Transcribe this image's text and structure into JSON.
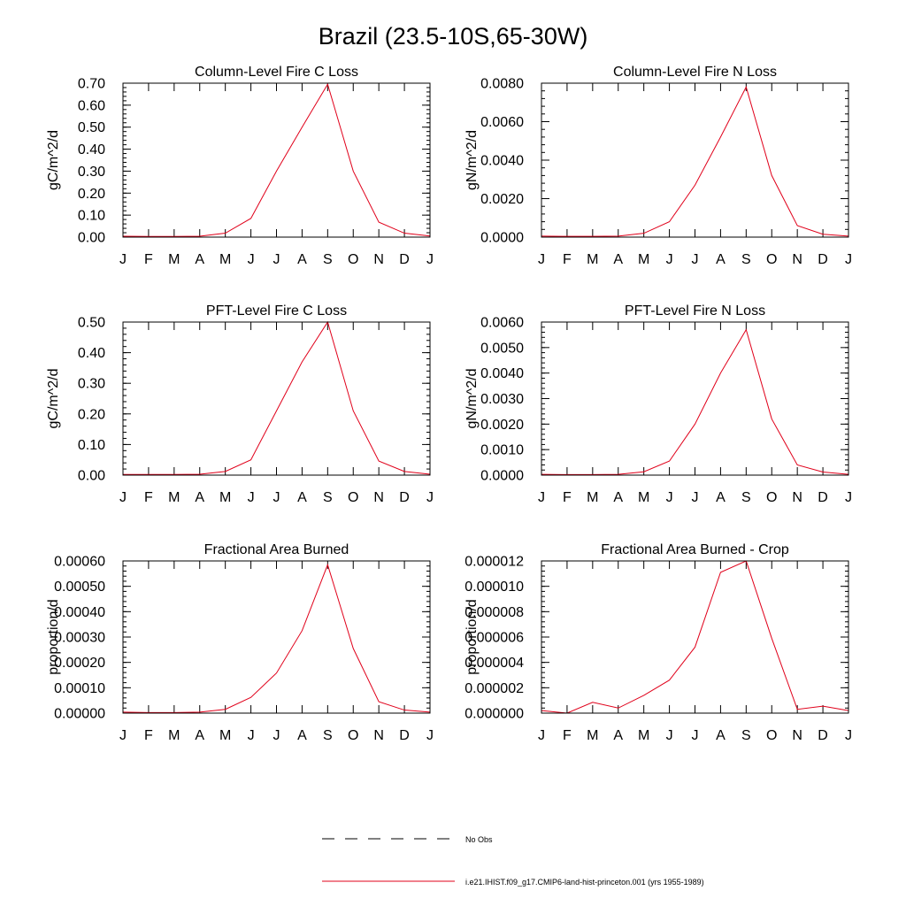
{
  "figure": {
    "title": "Brazil (23.5-10S,65-30W)"
  },
  "legend": {
    "obs_label": "No Obs",
    "obs_color": "#000000",
    "model_label": "i.e21.IHIST.f09_g17.CMIP6-land-hist-princeton.001 (yrs 1955-1989)",
    "model_color": "#e0001a"
  },
  "chart_data": [
    {
      "type": "line",
      "title": "Column-Level Fire C Loss",
      "xlabel": "",
      "ylabel": "gC/m^2/d",
      "x": [
        "J",
        "F",
        "M",
        "A",
        "M",
        "J",
        "J",
        "A",
        "S",
        "O",
        "N",
        "D",
        "J"
      ],
      "ylim": [
        0,
        0.7
      ],
      "yticks": [
        "0.00",
        "0.10",
        "0.20",
        "0.30",
        "0.40",
        "0.50",
        "0.60",
        "0.70"
      ],
      "ytick_values": [
        0,
        0.1,
        0.2,
        0.3,
        0.4,
        0.5,
        0.6,
        0.7
      ],
      "minor_step": 0.02,
      "series": [
        {
          "color": "#e0001a",
          "values": [
            0.004,
            0.003,
            0.003,
            0.004,
            0.018,
            0.085,
            0.3,
            0.5,
            0.695,
            0.3,
            0.068,
            0.018,
            0.005
          ]
        }
      ]
    },
    {
      "type": "line",
      "title": "Column-Level Fire N Loss",
      "xlabel": "",
      "ylabel": "gN/m^2/d",
      "x": [
        "J",
        "F",
        "M",
        "A",
        "M",
        "J",
        "J",
        "A",
        "S",
        "O",
        "N",
        "D",
        "J"
      ],
      "ylim": [
        0,
        0.008
      ],
      "yticks": [
        "0.0000",
        "0.0020",
        "0.0040",
        "0.0060",
        "0.0080"
      ],
      "ytick_values": [
        0,
        0.002,
        0.004,
        0.006,
        0.008
      ],
      "minor_step": 0.0004,
      "series": [
        {
          "color": "#e0001a",
          "values": [
            5e-05,
            4e-05,
            4e-05,
            5e-05,
            0.0002,
            0.0008,
            0.0027,
            0.0052,
            0.0078,
            0.0032,
            0.0006,
            0.00015,
            5e-05
          ]
        }
      ]
    },
    {
      "type": "line",
      "title": "PFT-Level Fire C Loss",
      "xlabel": "",
      "ylabel": "gC/m^2/d",
      "x": [
        "J",
        "F",
        "M",
        "A",
        "M",
        "J",
        "J",
        "A",
        "S",
        "O",
        "N",
        "D",
        "J"
      ],
      "ylim": [
        0,
        0.5
      ],
      "yticks": [
        "0.00",
        "0.10",
        "0.20",
        "0.30",
        "0.40",
        "0.50"
      ],
      "ytick_values": [
        0,
        0.1,
        0.2,
        0.3,
        0.4,
        0.5
      ],
      "minor_step": 0.02,
      "series": [
        {
          "color": "#e0001a",
          "values": [
            0.002,
            0.002,
            0.002,
            0.003,
            0.012,
            0.05,
            0.21,
            0.37,
            0.5,
            0.21,
            0.046,
            0.012,
            0.003
          ]
        }
      ]
    },
    {
      "type": "line",
      "title": "PFT-Level Fire N Loss",
      "xlabel": "",
      "ylabel": "gN/m^2/d",
      "x": [
        "J",
        "F",
        "M",
        "A",
        "M",
        "J",
        "J",
        "A",
        "S",
        "O",
        "N",
        "D",
        "J"
      ],
      "ylim": [
        0,
        0.006
      ],
      "yticks": [
        "0.0000",
        "0.0010",
        "0.0020",
        "0.0030",
        "0.0040",
        "0.0050",
        "0.0060"
      ],
      "ytick_values": [
        0,
        0.001,
        0.002,
        0.003,
        0.004,
        0.005,
        0.006
      ],
      "minor_step": 0.0002,
      "series": [
        {
          "color": "#e0001a",
          "values": [
            3e-05,
            2e-05,
            2e-05,
            3e-05,
            0.00013,
            0.00055,
            0.002,
            0.004,
            0.0057,
            0.0022,
            0.0004,
            0.00012,
            3e-05
          ]
        }
      ]
    },
    {
      "type": "line",
      "title": "Fractional Area Burned",
      "xlabel": "",
      "ylabel": "proportion/d",
      "x": [
        "J",
        "F",
        "M",
        "A",
        "M",
        "J",
        "J",
        "A",
        "S",
        "O",
        "N",
        "D",
        "J"
      ],
      "ylim": [
        0,
        0.0006
      ],
      "yticks": [
        "0.00000",
        "0.00010",
        "0.00020",
        "0.00030",
        "0.00040",
        "0.00050",
        "0.00060"
      ],
      "ytick_values": [
        0,
        0.0001,
        0.0002,
        0.0003,
        0.0004,
        0.0005,
        0.0006
      ],
      "minor_step": 2e-05,
      "series": [
        {
          "color": "#e0001a",
          "values": [
            4e-06,
            2e-06,
            2e-06,
            4e-06,
            1.5e-05,
            6.2e-05,
            0.000158,
            0.000325,
            0.000585,
            0.000255,
            4.5e-05,
            1.2e-05,
            4e-06
          ]
        }
      ]
    },
    {
      "type": "line",
      "title": "Fractional Area Burned - Crop",
      "xlabel": "",
      "ylabel": "proportion/d",
      "x": [
        "J",
        "F",
        "M",
        "A",
        "M",
        "J",
        "J",
        "A",
        "S",
        "O",
        "N",
        "D",
        "J"
      ],
      "ylim": [
        0,
        1.2e-05
      ],
      "yticks": [
        "0.000000",
        "0.000002",
        "0.000004",
        "0.000006",
        "0.000008",
        "0.000010",
        "0.000012"
      ],
      "ytick_values": [
        0,
        2e-06,
        4e-06,
        6e-06,
        8e-06,
        1e-05,
        1.2e-05
      ],
      "minor_step": 4e-07,
      "series": [
        {
          "color": "#e0001a",
          "values": [
            2e-07,
            0.0,
            8.5e-07,
            4e-07,
            1.4e-06,
            2.6e-06,
            5.2e-06,
            1.11e-05,
            1.2e-05,
            5.9e-06,
            3e-07,
            5.5e-07,
            2e-07
          ]
        }
      ]
    }
  ]
}
